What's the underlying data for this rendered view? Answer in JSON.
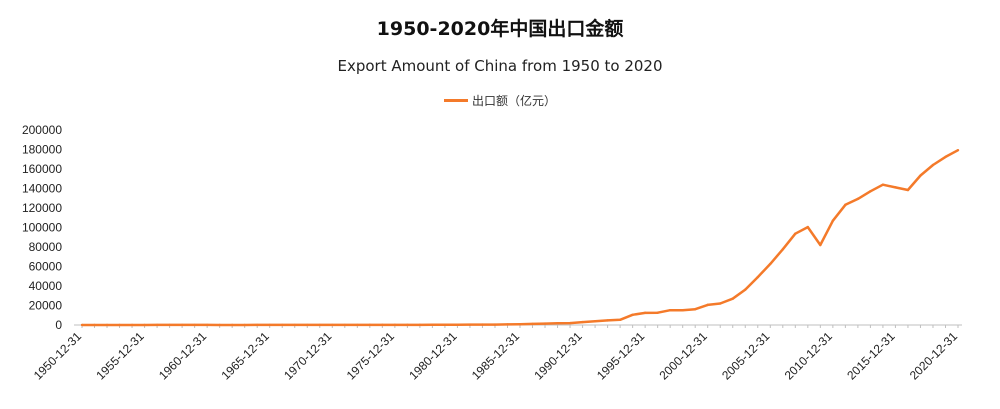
{
  "chart_data": {
    "type": "line",
    "title": "1950-2020年中国出口金额",
    "subtitle": "Export Amount of China from 1950 to 2020",
    "xlabel": "",
    "ylabel": "",
    "ylim": [
      0,
      200000
    ],
    "yticks": [
      0,
      20000,
      40000,
      60000,
      80000,
      100000,
      120000,
      140000,
      160000,
      180000,
      200000
    ],
    "xtick_labels": [
      "1950-12-31",
      "1955-12-31",
      "1960-12-31",
      "1965-12-31",
      "1970-12-31",
      "1975-12-31",
      "1980-12-31",
      "1985-12-31",
      "1990-12-31",
      "1995-12-31",
      "2000-12-31",
      "2005-12-31",
      "2010-12-31",
      "2015-12-31",
      "2020-12-31"
    ],
    "grid": false,
    "legend_position": "top-center",
    "color": "#F47A2A",
    "x": [
      1950,
      1951,
      1952,
      1953,
      1954,
      1955,
      1956,
      1957,
      1958,
      1959,
      1960,
      1961,
      1962,
      1963,
      1964,
      1965,
      1966,
      1967,
      1968,
      1969,
      1970,
      1971,
      1972,
      1973,
      1974,
      1975,
      1976,
      1977,
      1978,
      1979,
      1980,
      1981,
      1982,
      1983,
      1984,
      1985,
      1986,
      1987,
      1988,
      1989,
      1990,
      1991,
      1992,
      1993,
      1994,
      1995,
      1996,
      1997,
      1998,
      1999,
      2000,
      2001,
      2002,
      2003,
      2004,
      2005,
      2006,
      2007,
      2008,
      2009,
      2010,
      2011,
      2012,
      2013,
      2014,
      2015,
      2016,
      2017,
      2018,
      2019,
      2020
    ],
    "series": [
      {
        "name": "出口额（亿元）",
        "values": [
          20,
          24,
          27,
          35,
          40,
          49,
          55,
          55,
          67,
          78,
          63,
          48,
          47,
          50,
          55,
          63,
          66,
          59,
          58,
          60,
          57,
          69,
          83,
          117,
          140,
          143,
          135,
          152,
          168,
          212,
          271,
          368,
          414,
          438,
          580,
          809,
          1082,
          1470,
          1767,
          1956,
          2986,
          3827,
          4676,
          5285,
          10422,
          12452,
          12576,
          15161,
          15224,
          16160,
          20634,
          22024,
          26948,
          36288,
          49103,
          62648,
          77597,
          93627,
          100395,
          82030,
          107023,
          123241,
          129359,
          137131,
          143884,
          141167,
          138419,
          153309,
          164128,
          172374,
          179326
        ]
      }
    ]
  }
}
